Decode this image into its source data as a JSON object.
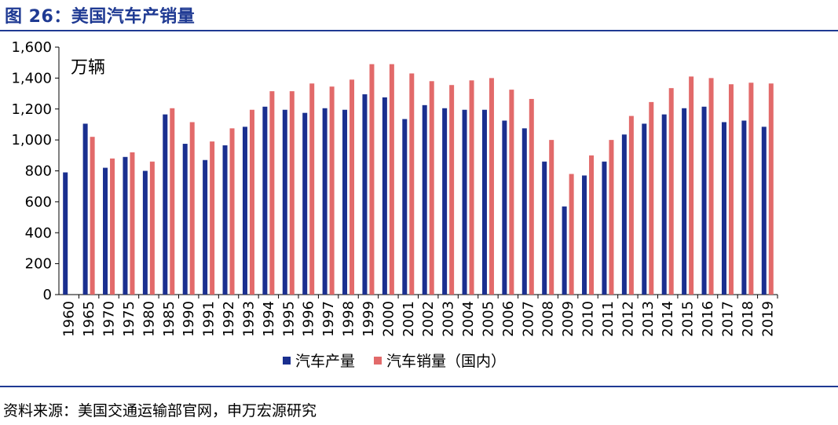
{
  "header": {
    "title": "图 26：美国汽车产销量"
  },
  "footer": {
    "source": "资料来源：美国交通运输部官网，申万宏源研究"
  },
  "chart_data": {
    "type": "bar",
    "unit_label": "万辆",
    "ylim": [
      0,
      1600
    ],
    "yticks": [
      "0",
      "200",
      "400",
      "600",
      "800",
      "1,000",
      "1,200",
      "1,400",
      "1,600"
    ],
    "categories": [
      "1960",
      "1965",
      "1970",
      "1975",
      "1980",
      "1985",
      "1990",
      "1991",
      "1992",
      "1993",
      "1994",
      "1995",
      "1996",
      "1997",
      "1998",
      "1999",
      "2000",
      "2001",
      "2002",
      "2003",
      "2004",
      "2005",
      "2006",
      "2007",
      "2008",
      "2009",
      "2010",
      "2011",
      "2012",
      "2013",
      "2014",
      "2015",
      "2016",
      "2017",
      "2018",
      "2019"
    ],
    "series": [
      {
        "name": "汽车产量",
        "color": "#1a2f8f",
        "values": [
          790,
          1105,
          820,
          890,
          800,
          1165,
          975,
          870,
          965,
          1085,
          1215,
          1195,
          1175,
          1205,
          1195,
          1295,
          1275,
          1135,
          1225,
          1205,
          1195,
          1195,
          1125,
          1075,
          860,
          570,
          770,
          860,
          1035,
          1105,
          1165,
          1205,
          1215,
          1115,
          1125,
          1085
        ]
      },
      {
        "name": "汽车销量（国内）",
        "color": "#e26a6a",
        "values": [
          null,
          1020,
          880,
          920,
          860,
          1205,
          1115,
          990,
          1075,
          1195,
          1315,
          1315,
          1365,
          1345,
          1390,
          1490,
          1490,
          1430,
          1380,
          1355,
          1385,
          1400,
          1325,
          1265,
          1000,
          780,
          900,
          1000,
          1155,
          1245,
          1335,
          1410,
          1400,
          1360,
          1370,
          1365
        ]
      }
    ],
    "legend_position": "bottom",
    "grid": false
  }
}
